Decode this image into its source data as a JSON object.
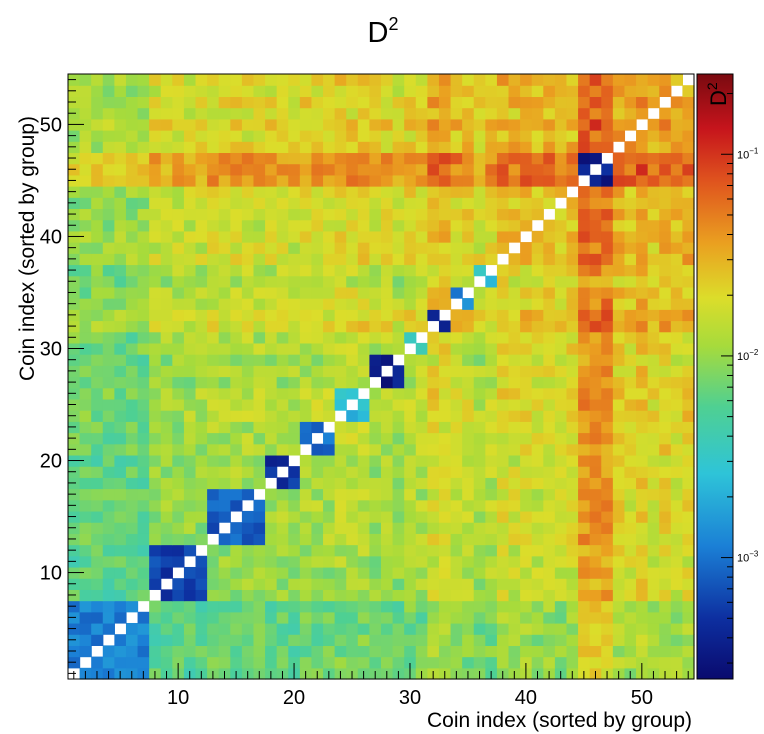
{
  "chart_data": {
    "type": "heatmap",
    "title": "D",
    "title_sup": "2",
    "xlabel": "Coin index (sorted by group)",
    "ylabel": "Coin index (sorted by group)",
    "colorbar_label": "D",
    "colorbar_label_sup": "2",
    "colorbar_scale": "log",
    "zlim": [
      0.00025,
      0.25
    ],
    "colorbar_ticks": [
      {
        "value": 0.001,
        "base": "10",
        "exp": "−3"
      },
      {
        "value": 0.01,
        "base": "10",
        "exp": "−2"
      },
      {
        "value": 0.1,
        "base": "10",
        "exp": "−1"
      }
    ],
    "xlim": [
      0.5,
      54.5
    ],
    "ylim": [
      0.5,
      54.5
    ],
    "x_ticks": [
      {
        "value": 10,
        "label": "10"
      },
      {
        "value": 20,
        "label": "20"
      },
      {
        "value": 30,
        "label": "30"
      },
      {
        "value": 40,
        "label": "40"
      },
      {
        "value": 50,
        "label": "50"
      }
    ],
    "y_ticks": [
      {
        "value": 10,
        "label": "10"
      },
      {
        "value": 20,
        "label": "20"
      },
      {
        "value": 30,
        "label": "30"
      },
      {
        "value": 40,
        "label": "40"
      },
      {
        "value": 50,
        "label": "50"
      }
    ],
    "n": 54,
    "diagonal": "empty",
    "groups": [
      {
        "start": 1,
        "end": 7,
        "within": 0.0012
      },
      {
        "start": 8,
        "end": 12,
        "within": 0.0006
      },
      {
        "start": 13,
        "end": 17,
        "within": 0.0008
      },
      {
        "start": 18,
        "end": 20,
        "within": 0.0005
      },
      {
        "start": 21,
        "end": 23,
        "within": 0.0009
      },
      {
        "start": 24,
        "end": 26,
        "within": 0.0025
      },
      {
        "start": 27,
        "end": 29,
        "within": 0.00035
      },
      {
        "start": 30,
        "end": 31,
        "within": 0.004
      },
      {
        "start": 32,
        "end": 33,
        "within": 0.00035
      },
      {
        "start": 34,
        "end": 35,
        "within": 0.0012
      },
      {
        "start": 36,
        "end": 37,
        "within": 0.003
      },
      {
        "start": 38,
        "end": 44,
        "within": 0
      },
      {
        "start": 45,
        "end": 47,
        "within": 0.0004
      },
      {
        "start": 48,
        "end": 54,
        "within": 0
      }
    ],
    "coin_levels": [
      0.004,
      0.004,
      0.004,
      0.004,
      0.004,
      0.004,
      0.004,
      0.009,
      0.009,
      0.009,
      0.009,
      0.009,
      0.012,
      0.011,
      0.012,
      0.012,
      0.011,
      0.01,
      0.011,
      0.01,
      0.013,
      0.013,
      0.012,
      0.016,
      0.016,
      0.016,
      0.011,
      0.013,
      0.01,
      0.015,
      0.014,
      0.03,
      0.03,
      0.02,
      0.019,
      0.012,
      0.016,
      0.03,
      0.025,
      0.028,
      0.022,
      0.026,
      0.02,
      0.028,
      0.13,
      0.13,
      0.13,
      0.04,
      0.03,
      0.05,
      0.025,
      0.04,
      0.03,
      0.035
    ]
  }
}
